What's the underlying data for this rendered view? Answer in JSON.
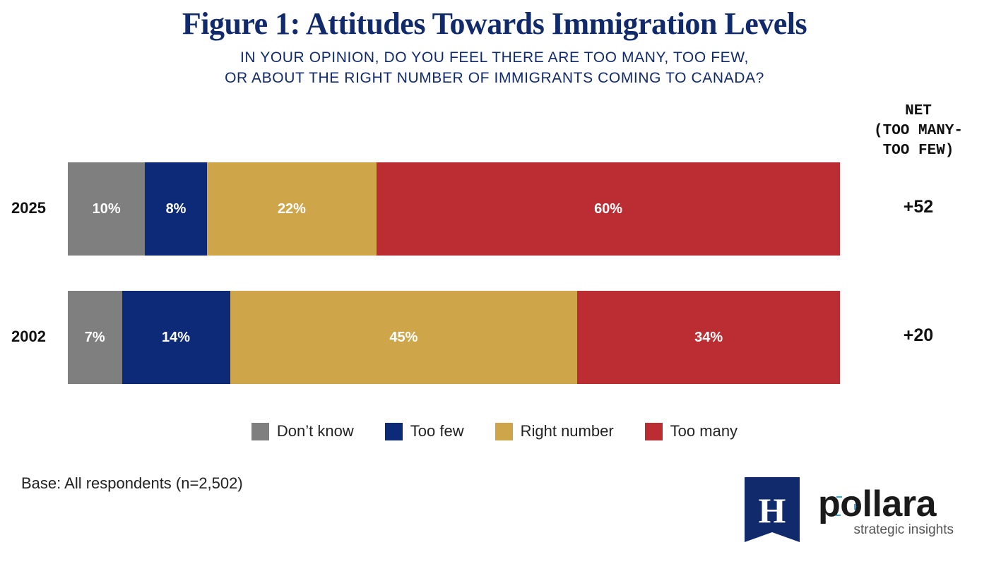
{
  "chart_data": {
    "type": "bar",
    "orientation": "horizontal",
    "stacked": true,
    "title": "Figure 1: Attitudes Towards Immigration Levels",
    "subtitle": [
      "IN YOUR OPINION, DO YOU FEEL THERE ARE TOO MANY, TOO FEW,",
      "OR ABOUT THE RIGHT NUMBER OF IMMIGRANTS COMING TO CANADA?"
    ],
    "categories": [
      "2025",
      "2002"
    ],
    "series": [
      {
        "name": "Don’t know",
        "color": "#7f7f7f",
        "values": [
          10,
          7
        ],
        "labels": [
          "10%",
          "7%"
        ]
      },
      {
        "name": "Too few",
        "color": "#0d2a78",
        "values": [
          8,
          14
        ],
        "labels": [
          "8%",
          "14%"
        ]
      },
      {
        "name": "Right number",
        "color": "#cfa54a",
        "values": [
          22,
          45
        ],
        "labels": [
          "22%",
          "45%"
        ]
      },
      {
        "name": "Too many",
        "color": "#bb2d32",
        "values": [
          60,
          34
        ],
        "labels": [
          "60%",
          "34%"
        ]
      }
    ],
    "net_header": [
      "NET",
      "(TOO MANY-",
      "TOO FEW)"
    ],
    "net_values": [
      "+52",
      "+20"
    ],
    "xlim": [
      0,
      100
    ],
    "legend_position": "bottom",
    "grid": false
  },
  "footer": {
    "base_note": "Base: All respondents (n=2,502)",
    "logo_letter": "H",
    "brand": "pollara",
    "tagline": "strategic insights",
    "logo_color": "#102a6b",
    "accent_color": "#3aa6d8"
  }
}
